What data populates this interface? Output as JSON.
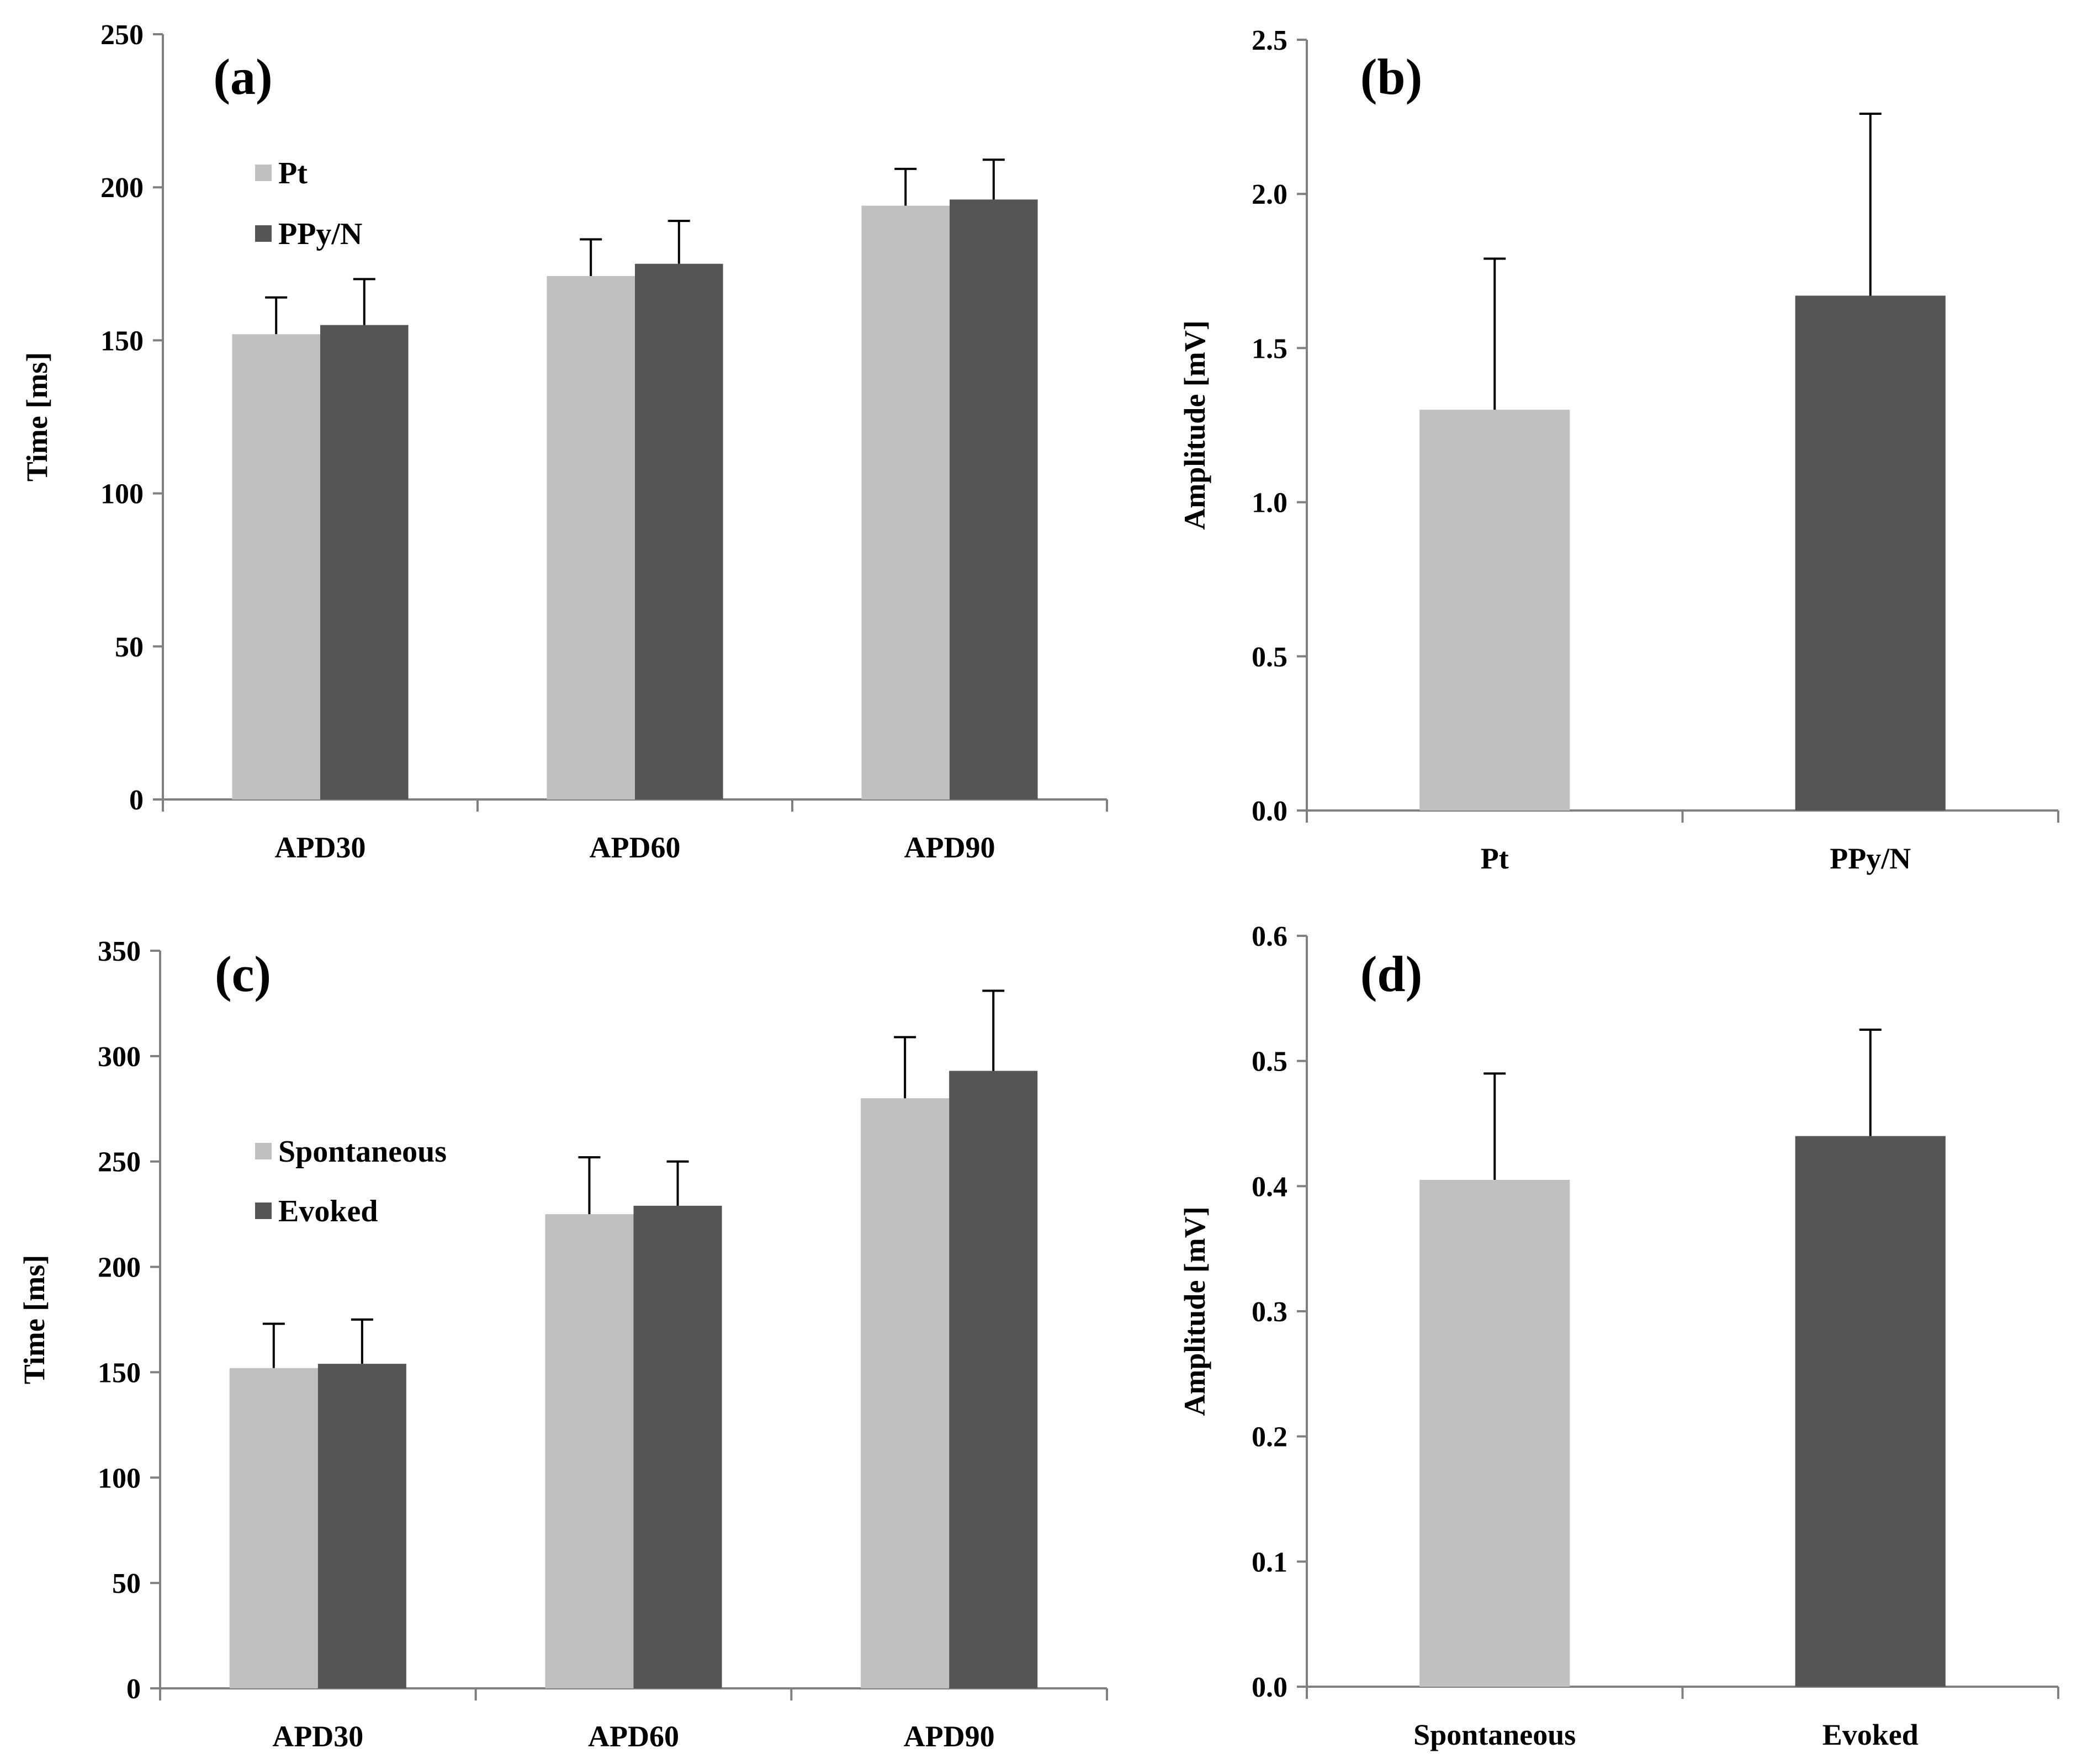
{
  "colors": {
    "light": "#c0c0c0",
    "dark": "#555555",
    "axis": "#808080",
    "error": "#000000"
  },
  "chart_data": [
    {
      "panel": "(a)",
      "type": "bar",
      "categories": [
        "APD30",
        "APD60",
        "APD90"
      ],
      "series": [
        {
          "name": "Pt",
          "values": [
            152,
            171,
            194
          ],
          "errors": [
            12,
            12,
            12
          ]
        },
        {
          "name": "PPy/N",
          "values": [
            155,
            175,
            196
          ],
          "errors": [
            15,
            14,
            13
          ]
        }
      ],
      "ylabel": "Time [ms]",
      "ylim": [
        0,
        250
      ],
      "yticks": [
        0,
        50,
        100,
        150,
        200,
        250
      ],
      "ytick_labels": [
        "0",
        "50",
        "100",
        "150",
        "200",
        "250"
      ],
      "legend": "top-left",
      "grid": false
    },
    {
      "panel": "(b)",
      "type": "bar",
      "categories": [
        "Pt",
        "PPy/N"
      ],
      "values": [
        1.3,
        1.67
      ],
      "errors": [
        0.49,
        0.59
      ],
      "ylabel": "Amplitude [mV]",
      "ylim": [
        0,
        2.5
      ],
      "yticks": [
        0,
        0.5,
        1.0,
        1.5,
        2.0,
        2.5
      ],
      "ytick_labels": [
        "0.0",
        "0.5",
        "1.0",
        "1.5",
        "2.0",
        "2.5"
      ],
      "grid": false
    },
    {
      "panel": "(c)",
      "type": "bar",
      "categories": [
        "APD30",
        "APD60",
        "APD90"
      ],
      "series": [
        {
          "name": "Spontaneous",
          "values": [
            152,
            225,
            280
          ],
          "errors": [
            21,
            27,
            29
          ]
        },
        {
          "name": "Evoked",
          "values": [
            154,
            229,
            293
          ],
          "errors": [
            21,
            21,
            38
          ]
        }
      ],
      "ylabel": "Time [ms]",
      "ylim": [
        0,
        350
      ],
      "yticks": [
        0,
        50,
        100,
        150,
        200,
        250,
        300,
        350
      ],
      "ytick_labels": [
        "0",
        "50",
        "100",
        "150",
        "200",
        "250",
        "300",
        "350"
      ],
      "legend": "middle-left",
      "grid": false
    },
    {
      "panel": "(d)",
      "type": "bar",
      "categories": [
        "Spontaneous",
        "Evoked"
      ],
      "values": [
        0.405,
        0.44
      ],
      "errors": [
        0.085,
        0.085
      ],
      "ylabel": "Amplitude [mV]",
      "ylim": [
        0,
        0.6
      ],
      "yticks": [
        0,
        0.1,
        0.2,
        0.3,
        0.4,
        0.5,
        0.6
      ],
      "ytick_labels": [
        "0.0",
        "0.1",
        "0.2",
        "0.3",
        "0.4",
        "0.5",
        "0.6"
      ],
      "grid": false
    }
  ]
}
